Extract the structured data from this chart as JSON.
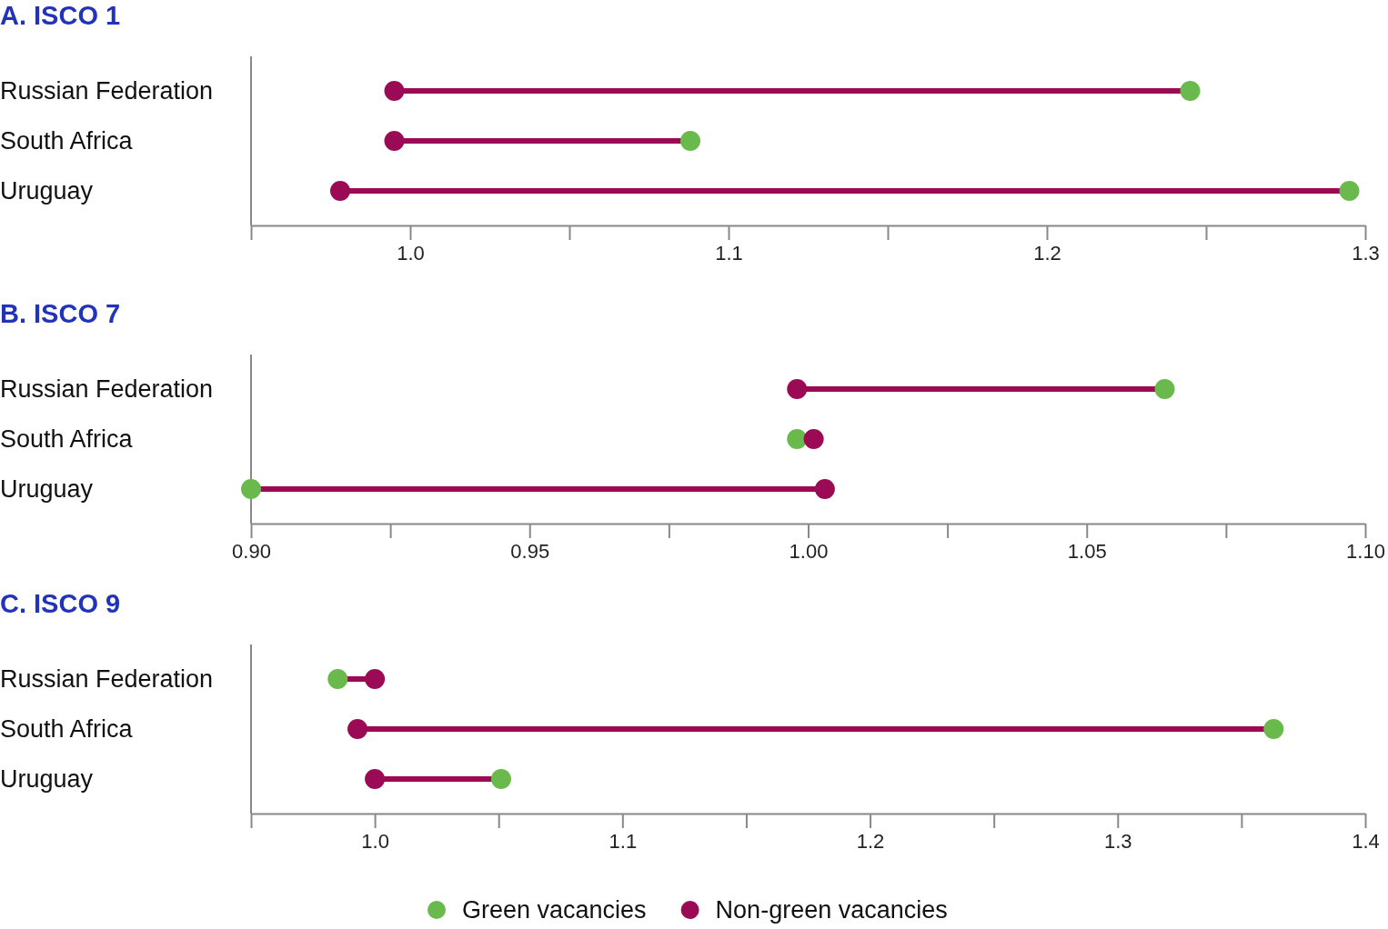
{
  "chart_data": [
    {
      "type": "scatter",
      "title": "A. ISCO 1",
      "orientation": "horizontal",
      "marker": "circle",
      "categories": [
        "Russian Federation",
        "South Africa",
        "Uruguay"
      ],
      "xlim": [
        0.95,
        1.3
      ],
      "xticks": [
        {
          "value": 0.95,
          "label": null
        },
        {
          "value": 1.0,
          "label": "1.0"
        },
        {
          "value": 1.05,
          "label": null
        },
        1.1,
        {
          "value": 1.15,
          "label": null
        },
        1.2,
        {
          "value": 1.25,
          "label": null
        },
        1.3
      ],
      "series": [
        {
          "color": "#6ab94c",
          "values": [
            1.245,
            1.088,
            1.295
          ]
        },
        {
          "color": "#9b0a55",
          "values": [
            0.995,
            0.995,
            0.978
          ]
        }
      ]
    },
    {
      "type": "scatter",
      "title": "B. ISCO 7",
      "orientation": "horizontal",
      "marker": "circle",
      "categories": [
        "Russian Federation",
        "South Africa",
        "Uruguay"
      ],
      "xlim": [
        0.9,
        1.1
      ],
      "xticks": [
        {
          "value": 0.9,
          "label": "0.90"
        },
        {
          "value": 0.925,
          "label": null
        },
        0.95,
        {
          "value": 0.975,
          "label": null
        },
        {
          "value": 1.0,
          "label": "1.00"
        },
        {
          "value": 1.025,
          "label": null
        },
        1.05,
        {
          "value": 1.075,
          "label": null
        },
        {
          "value": 1.1,
          "label": "1.10"
        }
      ],
      "series": [
        {
          "color": "#6ab94c",
          "values": [
            1.064,
            0.998,
            0.9
          ]
        },
        {
          "color": "#9b0a55",
          "values": [
            0.998,
            1.001,
            1.003
          ]
        }
      ]
    },
    {
      "type": "scatter",
      "title": "C. ISCO 9",
      "orientation": "horizontal",
      "marker": "circle",
      "legend": "bottom",
      "categories": [
        "Russian Federation",
        "South Africa",
        "Uruguay"
      ],
      "xlim": [
        0.95,
        1.4
      ],
      "xticks": [
        {
          "value": 0.95,
          "label": null
        },
        {
          "value": 1.0,
          "label": "1.0"
        },
        {
          "value": 1.05,
          "label": null
        },
        1.1,
        {
          "value": 1.15,
          "label": null
        },
        1.2,
        {
          "value": 1.25,
          "label": null
        },
        1.3,
        {
          "value": 1.35,
          "label": null
        },
        1.4
      ],
      "series": [
        {
          "name": "Green vacancies",
          "color": "#6ab94c",
          "values": [
            0.985,
            1.363,
            1.051
          ]
        },
        {
          "name": "Non-green vacancies",
          "color": "#9b0a55",
          "values": [
            1.0,
            0.993,
            1.0
          ]
        }
      ]
    }
  ]
}
